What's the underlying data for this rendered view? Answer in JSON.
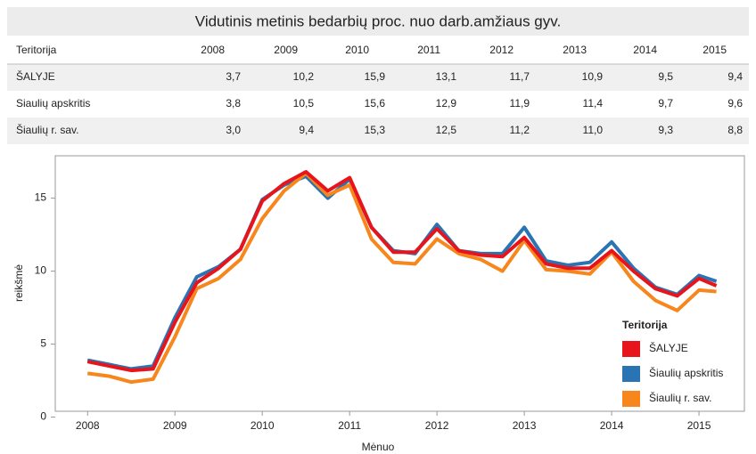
{
  "table": {
    "title": "Vidutinis metinis bedarbių proc. nuo darb.amžiaus gyv.",
    "header": [
      "Teritorija",
      "2008",
      "2009",
      "2010",
      "2011",
      "2012",
      "2013",
      "2014",
      "2015"
    ],
    "rows": [
      [
        "ŠALYJE",
        "3,7",
        "10,2",
        "15,9",
        "13,1",
        "11,7",
        "10,9",
        "9,5",
        "9,4"
      ],
      [
        "Siaulių apskritis",
        "3,8",
        "10,5",
        "15,6",
        "12,9",
        "11,9",
        "11,4",
        "9,7",
        "9,6"
      ],
      [
        "Šiaulių r. sav.",
        "3,0",
        "9,4",
        "15,3",
        "12,5",
        "11,2",
        "11,0",
        "9,3",
        "8,8"
      ]
    ]
  },
  "chart_data": {
    "type": "line",
    "x_label": "Mėnuo",
    "y_label": "reikšmė",
    "legend_title": "Teritorija",
    "legend": "bottom-right",
    "x": [
      2008.0,
      2008.25,
      2008.5,
      2008.75,
      2009.0,
      2009.25,
      2009.5,
      2009.75,
      2010.0,
      2010.25,
      2010.5,
      2010.75,
      2011.0,
      2011.25,
      2011.5,
      2011.75,
      2012.0,
      2012.25,
      2012.5,
      2012.75,
      2013.0,
      2013.25,
      2013.5,
      2013.75,
      2014.0,
      2014.25,
      2014.5,
      2014.75,
      2015.0,
      2015.2
    ],
    "series": [
      {
        "name": "ŠALYJE",
        "color": "#e8141c",
        "values": [
          3.8,
          3.5,
          3.2,
          3.3,
          6.5,
          9.2,
          10.2,
          11.5,
          14.8,
          16.0,
          16.8,
          15.5,
          16.4,
          13.0,
          11.3,
          11.3,
          12.9,
          11.4,
          11.1,
          11.0,
          12.3,
          10.5,
          10.2,
          10.2,
          11.4,
          10.0,
          8.8,
          8.3,
          9.5,
          9.0
        ]
      },
      {
        "name": "Šiaulių apskritis",
        "color": "#2a74b4",
        "values": [
          3.9,
          3.6,
          3.3,
          3.5,
          6.8,
          9.6,
          10.3,
          11.5,
          14.9,
          15.9,
          16.5,
          15.0,
          16.3,
          13.0,
          11.4,
          11.2,
          13.2,
          11.4,
          11.2,
          11.2,
          13.0,
          10.7,
          10.4,
          10.6,
          12.0,
          10.2,
          8.9,
          8.4,
          9.7,
          9.3
        ]
      },
      {
        "name": "Šiaulių r. sav.",
        "color": "#f7861c",
        "values": [
          3.0,
          2.8,
          2.4,
          2.6,
          5.5,
          8.8,
          9.5,
          10.8,
          13.6,
          15.5,
          16.7,
          15.2,
          15.9,
          12.2,
          10.6,
          10.5,
          12.2,
          11.2,
          10.8,
          10.0,
          12.1,
          10.1,
          10.0,
          9.8,
          11.3,
          9.3,
          8.0,
          7.3,
          8.7,
          8.6
        ]
      }
    ],
    "xlim": [
      2007.63,
      2015.52
    ],
    "xticks": [
      2008,
      2009,
      2010,
      2011,
      2012,
      2013,
      2014,
      2015
    ],
    "ylim": [
      0.4,
      17.9
    ],
    "yticks": [
      0,
      5,
      10,
      15
    ]
  }
}
